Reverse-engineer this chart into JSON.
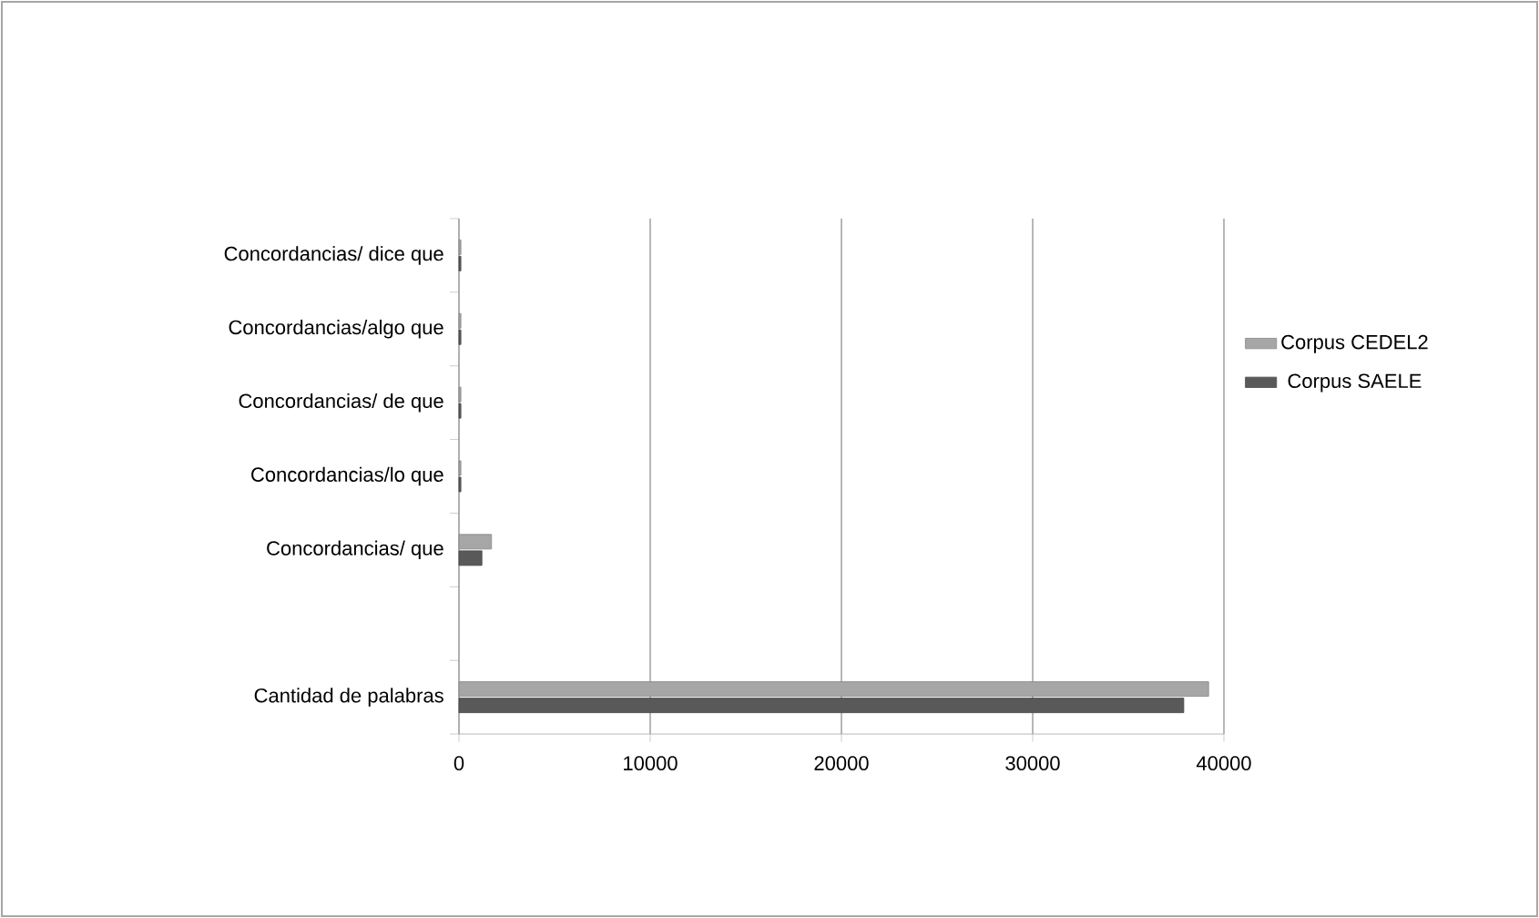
{
  "chart_data": {
    "type": "bar",
    "orientation": "horizontal",
    "categories": [
      "Concordancias/ dice que",
      "Concordancias/algo que",
      "Concordancias/ de que",
      "Concordancias/lo que",
      "Concordancias/ que",
      null,
      "Cantidad de palabras"
    ],
    "series": [
      {
        "name": "Corpus CEDEL2",
        "color": "#a6a6a6",
        "values": [
          100,
          100,
          100,
          100,
          1700,
          null,
          39200
        ]
      },
      {
        "name": "Corpus SAELE",
        "color": "#595959",
        "values": [
          100,
          100,
          100,
          100,
          1200,
          null,
          37900
        ]
      }
    ],
    "xlim": [
      0,
      40000
    ],
    "xticks": [
      0,
      10000,
      20000,
      30000,
      40000
    ],
    "grid": "x",
    "legend": "right"
  }
}
